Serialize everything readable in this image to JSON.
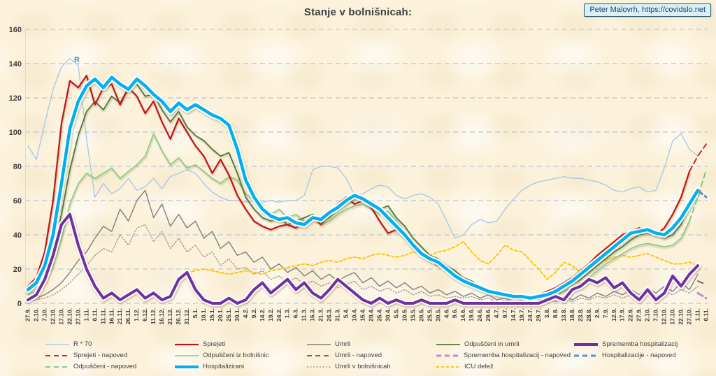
{
  "header": {
    "title": "Stanje v bolnišnicah:",
    "attribution": "Peter Malovrh, https://covidslo.net"
  },
  "annotations": {
    "r_line_label": "R"
  },
  "colors": {
    "background": "#fcf2db",
    "grid": "#c6cdd9",
    "axis_text": "#3f3f3f",
    "title_text": "#3f3f3f",
    "attribution_bg": "#d9f1f4",
    "attribution_border": "#27576b",
    "attribution_text": "#1f3d7a",
    "r_label": "#4a86c8",
    "hospitalized_accent": "#00b0f0",
    "admitted_accent": "#c01515",
    "change_accent": "#7030a0",
    "icu_accent": "#ffc000"
  },
  "chart_data": {
    "type": "line",
    "title": "Stanje v bolnišnicah:",
    "ylim": [
      0,
      160
    ],
    "y_ticks": [
      0,
      20,
      40,
      60,
      80,
      100,
      120,
      140,
      160
    ],
    "grid": "horizontal dashed",
    "legend_position": "bottom",
    "x_tick_labels": [
      "27.9.",
      "2.10.",
      "7.10.",
      "12.10.",
      "17.10.",
      "22.10.",
      "27.10.",
      "1.11.",
      "6.11.",
      "11.11.",
      "16.11.",
      "21.11.",
      "26.11.",
      "1.12.",
      "6.12.",
      "11.12.",
      "16.12.",
      "21.12.",
      "26.12.",
      "31.12.",
      "5.1.",
      "10.1.",
      "15.1.",
      "20.1.",
      "25.1.",
      "30.1.",
      "4.2.",
      "9.2.",
      "14.2.",
      "19.2.",
      "24.2.",
      "1.3.",
      "6.3.",
      "11.3.",
      "16.3.",
      "21.3.",
      "26.3.",
      "31.3.",
      "5.4.",
      "10.4.",
      "15.4.",
      "20.4.",
      "25.4.",
      "30.4.",
      "5.5.",
      "10.5.",
      "15.5.",
      "20.5.",
      "25.5.",
      "30.5.",
      "4.6.",
      "9.6.",
      "14.6.",
      "19.6.",
      "24.6.",
      "29.6.",
      "4.7.",
      "9.7.",
      "14.7.",
      "19.7.",
      "24.7.",
      "29.7.",
      "3.8.",
      "8.8.",
      "13.8.",
      "18.8.",
      "23.8.",
      "28.8.",
      "2.9.",
      "7.9.",
      "12.9.",
      "17.9.",
      "22.9.",
      "27.9.",
      "2.10.",
      "7.10.",
      "12.10.",
      "17.10.",
      "22.10.",
      "27.10.",
      "1.11.",
      "6.11."
    ],
    "series": [
      {
        "name": "R * 70",
        "color": "#a3c6e8",
        "width": 1.3,
        "dash": "solid",
        "values": [
          92,
          84,
          105,
          125,
          138,
          143,
          139,
          96,
          62,
          70,
          64,
          67,
          73,
          66,
          68,
          73,
          67,
          74,
          76,
          78,
          76,
          70,
          65,
          62,
          60,
          60,
          59,
          60,
          59,
          60,
          59,
          60,
          60,
          63,
          78,
          80,
          80,
          79,
          73,
          63,
          64,
          67,
          69,
          68,
          63,
          61,
          63,
          64,
          62,
          58,
          48,
          38,
          40,
          46,
          49,
          47,
          48,
          55,
          61,
          66,
          69,
          71,
          72,
          73,
          74,
          73,
          73,
          72,
          71,
          69,
          66,
          65,
          67,
          68,
          65,
          66,
          79,
          95,
          99,
          90,
          86,
          null
        ]
      },
      {
        "name": "Umrli v bolnišnicah",
        "color": "#8c8c8c",
        "width": 1.2,
        "dash": "dotted",
        "values": [
          1,
          2,
          3,
          5,
          8,
          12,
          17,
          22,
          28,
          32,
          30,
          40,
          34,
          44,
          46,
          36,
          42,
          32,
          38,
          30,
          34,
          27,
          30,
          22,
          26,
          20,
          21,
          17,
          19,
          14,
          16,
          12,
          15,
          11,
          13,
          10,
          12,
          9,
          11,
          13,
          8,
          10,
          7,
          9,
          6,
          8,
          5,
          7,
          4,
          5,
          3,
          4,
          3,
          4,
          2,
          3,
          1,
          2,
          1,
          1,
          1,
          1,
          2,
          1,
          2,
          1,
          3,
          2,
          4,
          3,
          5,
          3,
          5,
          4,
          6,
          4,
          7,
          5,
          8,
          6,
          10,
          null
        ]
      },
      {
        "name": "Umrli",
        "color": "#7f7f7f",
        "width": 1.4,
        "dash": "solid",
        "values": [
          2,
          3,
          5,
          8,
          12,
          18,
          25,
          30,
          38,
          45,
          42,
          55,
          48,
          60,
          66,
          50,
          58,
          45,
          52,
          44,
          48,
          38,
          42,
          32,
          36,
          28,
          30,
          24,
          27,
          20,
          23,
          18,
          21,
          16,
          19,
          14,
          17,
          13,
          16,
          18,
          12,
          15,
          10,
          13,
          9,
          12,
          8,
          10,
          6,
          8,
          5,
          7,
          4,
          6,
          3,
          5,
          2,
          3,
          1,
          2,
          1,
          2,
          3,
          2,
          4,
          2,
          5,
          3,
          6,
          4,
          7,
          5,
          8,
          5,
          9,
          6,
          10,
          7,
          12,
          8,
          17,
          null
        ]
      },
      {
        "name": "ICU delež",
        "color": "#ffc000",
        "width": 1.8,
        "dash": "dashed",
        "dash_pattern": "4 3",
        "values": [
          null,
          null,
          null,
          null,
          null,
          null,
          null,
          null,
          null,
          null,
          null,
          null,
          null,
          null,
          null,
          null,
          null,
          null,
          null,
          18,
          19,
          20,
          19,
          18,
          17,
          18,
          19,
          18,
          17,
          19,
          20,
          21,
          22,
          23,
          22,
          24,
          25,
          24,
          26,
          27,
          26,
          28,
          29,
          28,
          27,
          28,
          30,
          29,
          28,
          30,
          31,
          33,
          36,
          30,
          25,
          23,
          28,
          34,
          31,
          30,
          25,
          20,
          14,
          18,
          24,
          22,
          18,
          22,
          26,
          25,
          27,
          28,
          27,
          28,
          29,
          27,
          25,
          23,
          23,
          24,
          22,
          null
        ]
      },
      {
        "name": "Odpuščeni iz bolnišnic",
        "color": "#7fcd7f",
        "width": 1.6,
        "dash": "solid",
        "values": [
          5,
          7,
          12,
          22,
          38,
          58,
          70,
          76,
          73,
          76,
          79,
          73,
          77,
          81,
          86,
          99,
          89,
          81,
          85,
          79,
          81,
          77,
          73,
          70,
          74,
          72,
          64,
          60,
          56,
          52,
          55,
          50,
          52,
          48,
          50,
          46,
          48,
          52,
          55,
          57,
          58,
          55,
          52,
          54,
          48,
          42,
          36,
          30,
          26,
          24,
          20,
          17,
          14,
          12,
          9,
          7,
          6,
          5,
          4,
          3,
          3,
          3,
          4,
          5,
          7,
          9,
          12,
          15,
          19,
          23,
          26,
          29,
          32,
          34,
          35,
          34,
          33,
          34,
          38,
          48,
          null,
          null
        ]
      },
      {
        "name": "Odpuščeni in umrli",
        "color": "#4e7a38",
        "width": 1.8,
        "dash": "solid",
        "values": [
          7,
          10,
          17,
          30,
          52,
          78,
          98,
          112,
          118,
          113,
          121,
          117,
          126,
          128,
          121,
          122,
          113,
          106,
          112,
          103,
          98,
          95,
          90,
          86,
          88,
          76,
          62,
          55,
          50,
          48,
          50,
          46,
          48,
          50,
          52,
          48,
          50,
          55,
          58,
          61,
          62,
          58,
          55,
          57,
          50,
          45,
          38,
          33,
          28,
          26,
          22,
          19,
          15,
          13,
          10,
          8,
          7,
          5,
          4,
          4,
          3,
          4,
          5,
          6,
          8,
          11,
          14,
          18,
          22,
          26,
          30,
          33,
          37,
          40,
          41,
          40,
          38,
          40,
          46,
          57,
          null,
          null
        ]
      },
      {
        "name": "Sprejeti",
        "color": "#c01515",
        "width": 2.2,
        "dash": "solid",
        "values": [
          10,
          15,
          30,
          60,
          105,
          130,
          126,
          133,
          116,
          126,
          128,
          116,
          126,
          121,
          111,
          118,
          106,
          96,
          108,
          100,
          92,
          86,
          76,
          84,
          75,
          63,
          55,
          48,
          45,
          43,
          45,
          46,
          44,
          48,
          50,
          46,
          52,
          58,
          62,
          58,
          60,
          56,
          48,
          41,
          43,
          38,
          32,
          28,
          25,
          22,
          20,
          17,
          14,
          11,
          9,
          7,
          5,
          4,
          3,
          3,
          4,
          5,
          7,
          9,
          12,
          15,
          19,
          23,
          28,
          32,
          36,
          40,
          42,
          44,
          42,
          40,
          44,
          52,
          62,
          77,
          null,
          null
        ]
      },
      {
        "name": "Hospitalizirani",
        "color": "#00b0f0",
        "width": 4.5,
        "dash": "solid",
        "glow": true,
        "values": [
          8,
          12,
          22,
          40,
          70,
          102,
          118,
          127,
          131,
          126,
          132,
          128,
          125,
          131,
          127,
          122,
          118,
          112,
          117,
          113,
          116,
          113,
          110,
          108,
          104,
          90,
          72,
          62,
          55,
          51,
          49,
          50,
          47,
          46,
          50,
          49,
          53,
          56,
          60,
          63,
          61,
          58,
          55,
          50,
          45,
          40,
          34,
          29,
          26,
          24,
          20,
          16,
          13,
          11,
          9,
          7,
          6,
          5,
          4,
          4,
          3,
          4,
          5,
          7,
          10,
          13,
          17,
          21,
          25,
          29,
          33,
          37,
          41,
          42,
          43,
          41,
          40,
          44,
          50,
          58,
          66,
          null
        ]
      },
      {
        "name": "Sprememba hospitalizacij",
        "color": "#7030a0",
        "width": 4,
        "dash": "solid",
        "glow": true,
        "values": [
          2,
          5,
          14,
          28,
          46,
          52,
          34,
          20,
          10,
          3,
          6,
          2,
          5,
          8,
          3,
          6,
          2,
          4,
          14,
          18,
          8,
          2,
          0,
          0,
          3,
          0,
          2,
          8,
          12,
          6,
          10,
          14,
          8,
          12,
          6,
          3,
          8,
          14,
          10,
          6,
          2,
          0,
          3,
          0,
          2,
          0,
          0,
          2,
          0,
          0,
          0,
          2,
          0,
          0,
          0,
          0,
          0,
          0,
          0,
          0,
          0,
          0,
          2,
          4,
          2,
          8,
          10,
          14,
          12,
          15,
          9,
          12,
          6,
          2,
          8,
          2,
          6,
          16,
          10,
          17,
          22,
          null
        ]
      },
      {
        "name": "Sprejeti - napoved",
        "color": "#c01515",
        "width": 1.8,
        "dash": "dashed",
        "x": [
          79,
          80,
          81
        ],
        "values": [
          77,
          86,
          93
        ]
      },
      {
        "name": "Odpuščeni - napoved",
        "color": "#70c878",
        "width": 1.8,
        "dash": "dashed",
        "x": [
          79,
          80,
          81
        ],
        "values": [
          48,
          62,
          78
        ]
      },
      {
        "name": "Umrli - napoved",
        "color": "#5a5a5a",
        "width": 1.8,
        "dash": "dashed",
        "x": [
          80,
          81
        ],
        "values": [
          13,
          11
        ]
      },
      {
        "name": "Sprememba hospitalizacij - napoved",
        "color": "#b291d2",
        "width": 3,
        "dash": "dashed",
        "x": [
          80,
          81
        ],
        "values": [
          6,
          3
        ]
      },
      {
        "name": "Hospitalizacije - napoved",
        "color": "#4f93d6",
        "width": 3,
        "dash": "dashed",
        "x": [
          80,
          81
        ],
        "values": [
          66,
          62
        ]
      }
    ]
  },
  "legend": {
    "order": [
      "R * 70",
      "Sprejeti",
      "Umrli",
      "Odpuščeni in umrli",
      "Sprememba hospitalizacij",
      "Sprejeti - napoved",
      "Odpuščeni iz bolnišnic",
      "Umrli - napoved",
      "Sprememba hospitalizacij - napoved",
      "Hospitalizacije - napoved",
      "Odpuščeni - napoved",
      "Hospitalizirani",
      "Umrli v bolnišnicah",
      "ICU delež"
    ]
  }
}
